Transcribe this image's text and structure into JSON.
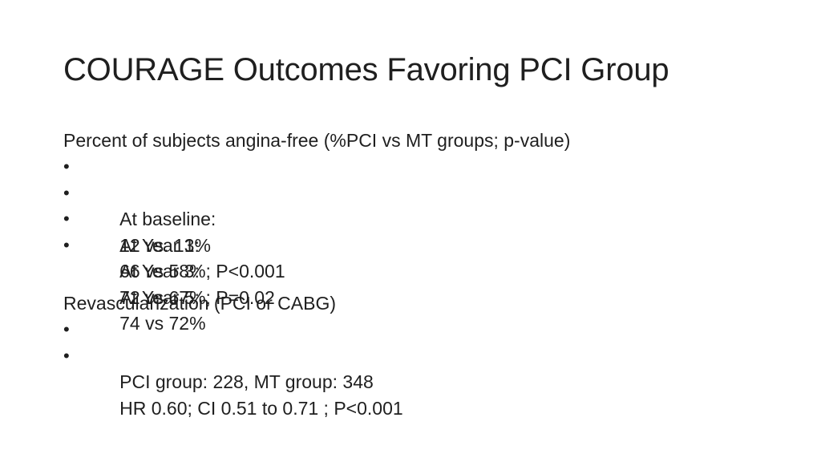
{
  "slide": {
    "title": "COURAGE Outcomes Favoring PCI Group",
    "sections": [
      {
        "heading": "Percent of subjects angina-free (%PCI vs MT groups; p-value)",
        "bullet_symbol": "•",
        "items": [
          {
            "label": "At baseline:",
            "value": "12 vs. 13%"
          },
          {
            "label": "At Year 1:",
            "value": "66 vs 58%; P<0.001"
          },
          {
            "label": "At Year 3:",
            "value": "72 vs 67%; P=0.02"
          },
          {
            "label": "At Year 5:",
            "value": "74 vs 72%"
          }
        ]
      },
      {
        "heading": "Revascularization (PCI or CABG)",
        "bullet_symbol": "•",
        "items": [
          {
            "text": "PCI group: 228, MT group: 348"
          },
          {
            "text": "HR  0.60; CI  0.51 to 0.71 ; P<0.001"
          }
        ]
      }
    ]
  }
}
